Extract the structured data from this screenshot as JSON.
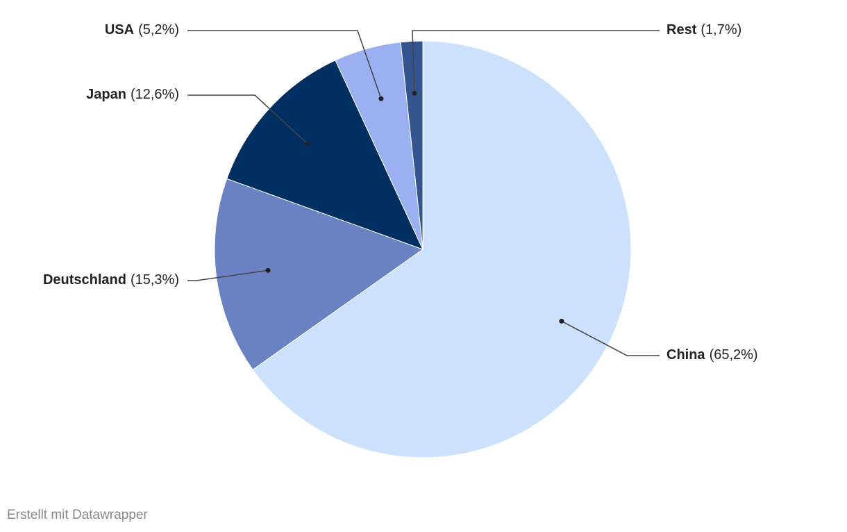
{
  "chart_data": {
    "type": "pie",
    "categories": [
      "China",
      "Deutschland",
      "Japan",
      "USA",
      "Rest"
    ],
    "values": [
      65.2,
      15.3,
      12.6,
      5.2,
      1.7
    ],
    "value_labels": [
      "(65,2%)",
      "(15,3%)",
      "(12,6%)",
      "(5,2%)",
      "(1,7%)"
    ],
    "colors": [
      "#cce1fb",
      "#6b82c2",
      "#002f62",
      "#9ab0f1",
      "#34548f"
    ],
    "credit": "Erstellt mit Datawrapper"
  }
}
